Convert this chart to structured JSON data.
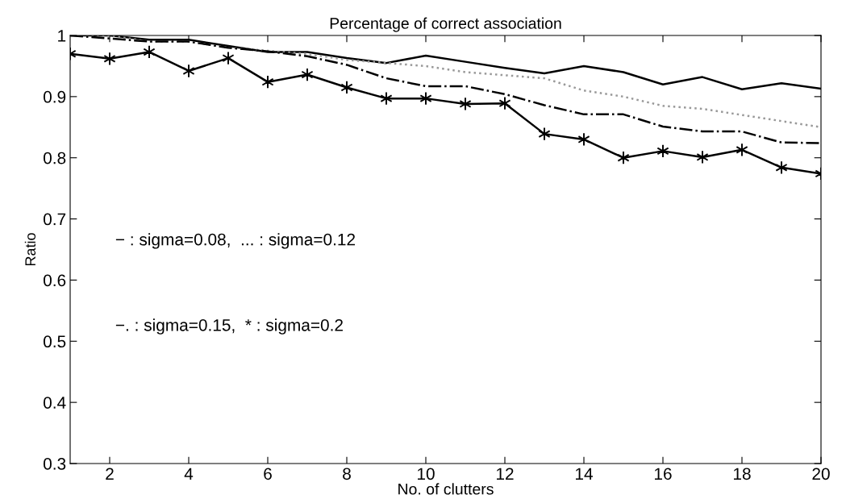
{
  "chart_data": {
    "type": "line",
    "title": "Percentage of correct association",
    "xlabel": "No. of clutters",
    "ylabel": "Ratio",
    "x": [
      1,
      2,
      3,
      4,
      5,
      6,
      7,
      8,
      9,
      10,
      11,
      12,
      13,
      14,
      15,
      16,
      17,
      18,
      19,
      20
    ],
    "xlim": [
      1,
      20
    ],
    "xticks": [
      2,
      4,
      6,
      8,
      10,
      12,
      14,
      16,
      18,
      20
    ],
    "ylim": [
      0.3,
      1
    ],
    "yticks": [
      0.3,
      0.4,
      0.5,
      0.6,
      0.7,
      0.8,
      0.9,
      1
    ],
    "grid": false,
    "series": [
      {
        "color": "#000000",
        "line_style": "solid",
        "marker": "none",
        "values": [
          1,
          1,
          0.993,
          0.993,
          0.983,
          0.973,
          0.973,
          0.963,
          0.955,
          0.967,
          0.957,
          0.947,
          0.938,
          0.95,
          0.94,
          0.92,
          0.932,
          0.912,
          0.922,
          0.913
        ]
      },
      {
        "color": "#999999",
        "line_style": "dotted",
        "marker": "none",
        "values": [
          1,
          1,
          0.99,
          0.99,
          0.98,
          0.975,
          0.97,
          0.96,
          0.955,
          0.95,
          0.94,
          0.935,
          0.93,
          0.91,
          0.9,
          0.885,
          0.88,
          0.87,
          0.86,
          0.85
        ]
      },
      {
        "color": "#000000",
        "line_style": "dashdot",
        "marker": "none",
        "values": [
          1,
          0.995,
          0.99,
          0.99,
          0.98,
          0.974,
          0.966,
          0.952,
          0.93,
          0.917,
          0.917,
          0.904,
          0.886,
          0.871,
          0.871,
          0.851,
          0.843,
          0.843,
          0.825,
          0.824
        ]
      },
      {
        "color": "#000000",
        "line_style": "solid",
        "marker": "cross",
        "values": [
          0.97,
          0.962,
          0.973,
          0.942,
          0.963,
          0.924,
          0.936,
          0.915,
          0.897,
          0.897,
          0.888,
          0.889,
          0.839,
          0.83,
          0.8,
          0.811,
          0.801,
          0.813,
          0.784,
          0.774
        ]
      }
    ],
    "annotations": [
      "− : sigma=0.08,  ... : sigma=0.12",
      "−. : sigma=0.15,  * : sigma=0.2"
    ]
  }
}
